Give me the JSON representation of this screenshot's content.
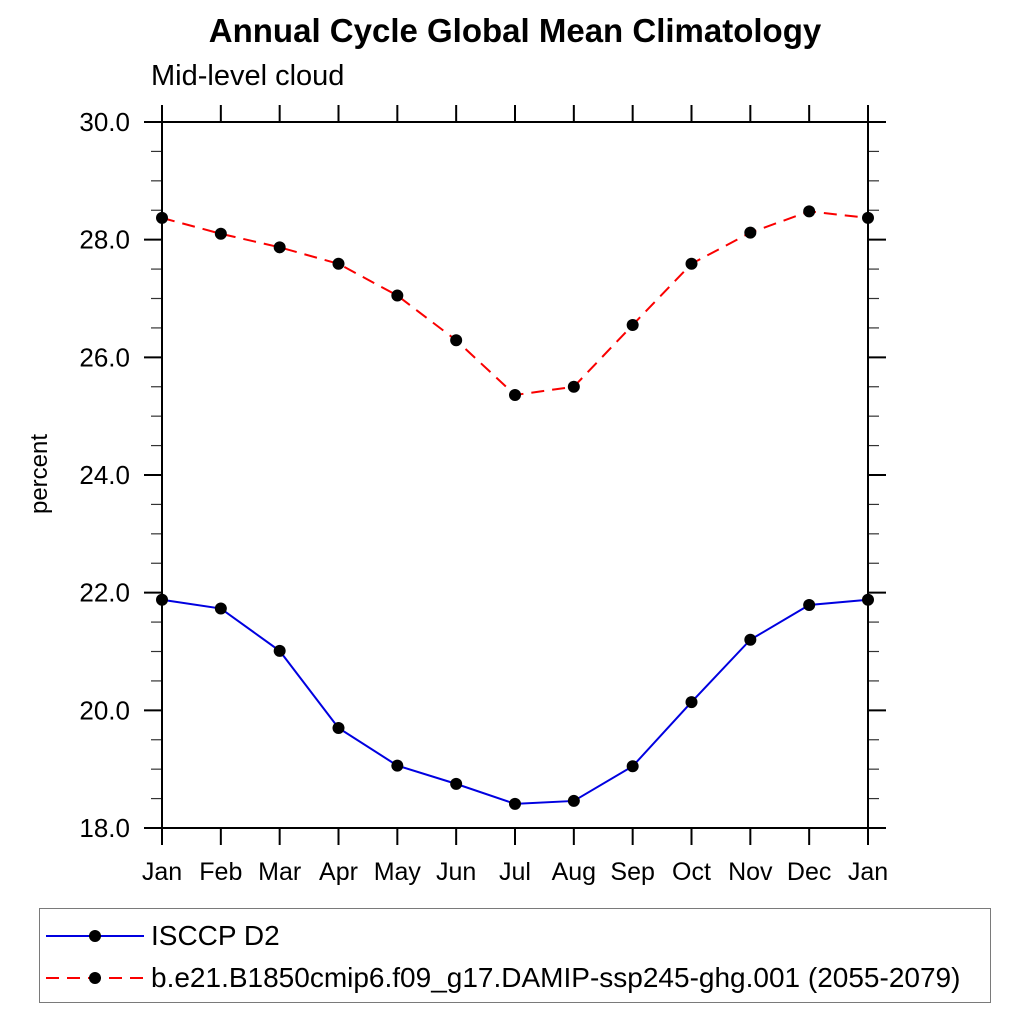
{
  "chart_data": {
    "type": "line",
    "title": "Annual Cycle Global Mean Climatology",
    "subtitle": "Mid-level cloud",
    "xlabel": "",
    "ylabel": "percent",
    "categories": [
      "Jan",
      "Feb",
      "Mar",
      "Apr",
      "May",
      "Jun",
      "Jul",
      "Aug",
      "Sep",
      "Oct",
      "Nov",
      "Dec",
      "Jan"
    ],
    "ylim": [
      18.0,
      30.0
    ],
    "ytick_values": [
      18,
      20,
      22,
      24,
      26,
      28,
      30
    ],
    "ytick_labels": [
      "18.0",
      "20.0",
      "22.0",
      "24.0",
      "26.0",
      "28.0",
      "30.0"
    ],
    "ytick_minor_step": 0.5,
    "grid": false,
    "frame": "box-with-outward-ticks",
    "legend_position": "bottom-left-box",
    "series": [
      {
        "name": "ISCCP D2",
        "line_style": "solid",
        "line_color": "#0000e0",
        "marker": "filled-circle",
        "marker_color": "#000000",
        "values": [
          21.88,
          21.73,
          21.01,
          19.7,
          19.06,
          18.75,
          18.41,
          18.46,
          19.05,
          20.14,
          21.2,
          21.79,
          21.88
        ]
      },
      {
        "name": "b.e21.B1850cmip6.f09_g17.DAMIP-ssp245-ghg.001 (2055-2079)",
        "line_style": "dashed",
        "line_color": "#fa0000",
        "marker": "filled-circle",
        "marker_color": "#000000",
        "values": [
          28.37,
          28.1,
          27.87,
          27.59,
          27.05,
          26.29,
          25.36,
          25.5,
          26.55,
          27.59,
          28.12,
          28.48,
          28.37
        ]
      }
    ]
  },
  "colors": {
    "axis": "#000000",
    "minor_tick": "#333333",
    "legend_border": "#7a7a7a",
    "background": "#ffffff"
  }
}
